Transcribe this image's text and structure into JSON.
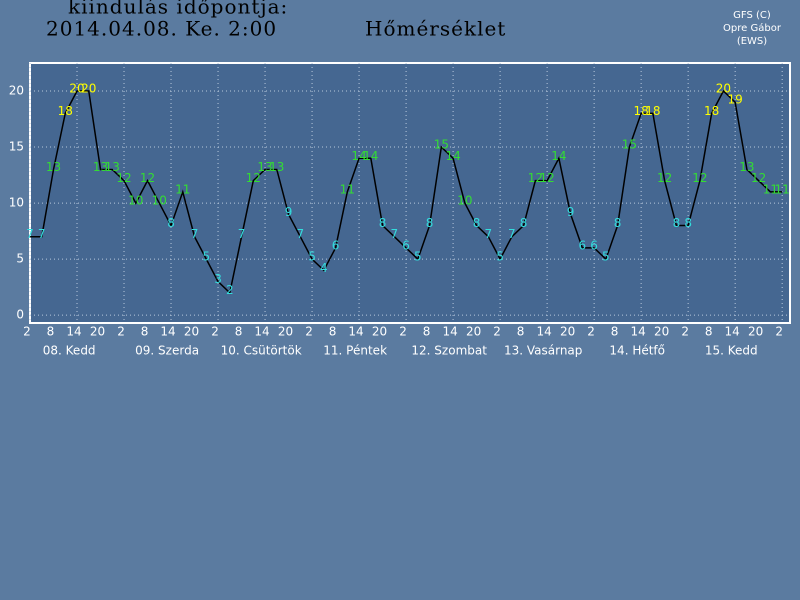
{
  "header": {
    "line1": "kiindulás időpontja:",
    "line2": "2014.04.08. Ke. 2:00",
    "credit1": "GFS (C)",
    "credit2": "Opre Gábor",
    "credit3": "(EWS)"
  },
  "chart_data": {
    "type": "line",
    "title": "Hőmérséklet",
    "x": [
      0,
      3,
      6,
      9,
      12,
      15,
      18,
      21,
      24,
      27,
      30,
      33,
      36,
      39,
      42,
      45,
      48,
      51,
      54,
      57,
      60,
      63,
      66,
      69,
      72,
      75,
      78,
      81,
      84,
      87,
      90,
      93,
      96,
      99,
      102,
      105,
      108,
      111,
      114,
      117,
      120,
      123,
      126,
      129,
      132,
      135,
      138,
      141,
      144,
      147,
      150,
      153,
      156,
      159,
      162,
      165,
      168,
      171,
      174,
      177,
      180,
      183,
      186,
      189,
      192
    ],
    "series": [
      {
        "name": "Hőmérséklet",
        "color": "#000000",
        "values": [
          7,
          7,
          13,
          18,
          20,
          20,
          13,
          13,
          12,
          10,
          12,
          10,
          8,
          11,
          7,
          5,
          3,
          2,
          7,
          12,
          13,
          13,
          9,
          7,
          5,
          4,
          6,
          11,
          14,
          14,
          8,
          7,
          6,
          5,
          8,
          15,
          14,
          10,
          8,
          7,
          5,
          7,
          8,
          12,
          12,
          14,
          9,
          6,
          6,
          5,
          8,
          15,
          18,
          18,
          12,
          8,
          8,
          12,
          18,
          20,
          19,
          13,
          12,
          11,
          11
        ]
      }
    ],
    "value_label_colors": [
      {
        "min": 18,
        "color": "#ffff00"
      },
      {
        "min": 10,
        "color": "#33dd33"
      },
      {
        "min": -50,
        "color": "#33dddd"
      }
    ],
    "xlim": [
      0,
      194
    ],
    "ylim": [
      -0.7,
      22.5
    ],
    "yticks": [
      0,
      5,
      10,
      15,
      20
    ],
    "xticks": [
      {
        "value": 0,
        "label": "2"
      },
      {
        "value": 6,
        "label": "8"
      },
      {
        "value": 12,
        "label": "14"
      },
      {
        "value": 18,
        "label": "20"
      },
      {
        "value": 24,
        "label": "2"
      },
      {
        "value": 30,
        "label": "8"
      },
      {
        "value": 36,
        "label": "14"
      },
      {
        "value": 42,
        "label": "20"
      },
      {
        "value": 48,
        "label": "2"
      },
      {
        "value": 54,
        "label": "8"
      },
      {
        "value": 60,
        "label": "14"
      },
      {
        "value": 66,
        "label": "20"
      },
      {
        "value": 72,
        "label": "2"
      },
      {
        "value": 78,
        "label": "8"
      },
      {
        "value": 84,
        "label": "14"
      },
      {
        "value": 90,
        "label": "20"
      },
      {
        "value": 96,
        "label": "2"
      },
      {
        "value": 102,
        "label": "8"
      },
      {
        "value": 108,
        "label": "14"
      },
      {
        "value": 114,
        "label": "20"
      },
      {
        "value": 120,
        "label": "2"
      },
      {
        "value": 126,
        "label": "8"
      },
      {
        "value": 132,
        "label": "14"
      },
      {
        "value": 138,
        "label": "20"
      },
      {
        "value": 144,
        "label": "2"
      },
      {
        "value": 150,
        "label": "8"
      },
      {
        "value": 156,
        "label": "14"
      },
      {
        "value": 162,
        "label": "20"
      },
      {
        "value": 168,
        "label": "2"
      },
      {
        "value": 174,
        "label": "8"
      },
      {
        "value": 180,
        "label": "14"
      },
      {
        "value": 186,
        "label": "20"
      },
      {
        "value": 192,
        "label": "2"
      }
    ],
    "day_labels": [
      {
        "value": 10,
        "label": "08. Kedd"
      },
      {
        "value": 35,
        "label": "09. Szerda"
      },
      {
        "value": 59,
        "label": "10. Csütörtök"
      },
      {
        "value": 83,
        "label": "11. Péntek"
      },
      {
        "value": 107,
        "label": "12. Szombat"
      },
      {
        "value": 131,
        "label": "13. Vasárnap"
      },
      {
        "value": 155,
        "label": "14. Hétfő"
      },
      {
        "value": 179,
        "label": "15. Kedd"
      }
    ],
    "grid": true
  }
}
